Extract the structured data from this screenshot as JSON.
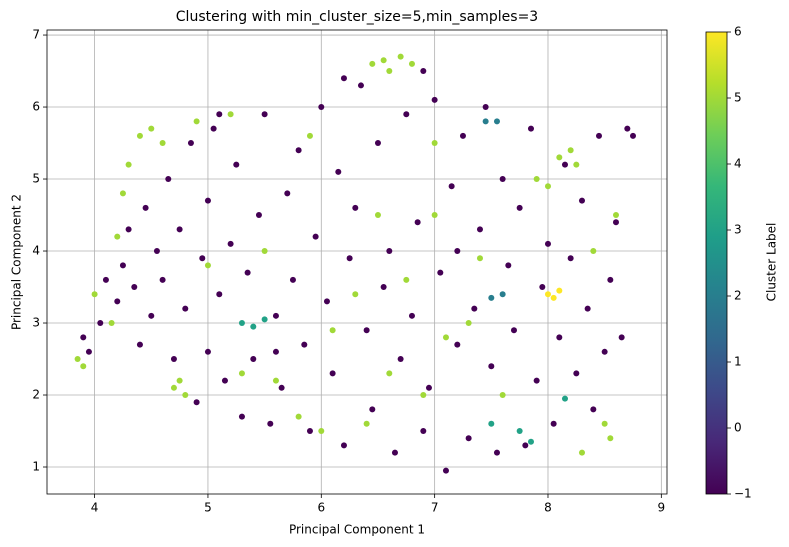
{
  "chart_data": {
    "type": "scatter",
    "title": "Clustering with min_cluster_size=5,min_samples=3",
    "x_label": "Principal Component 1",
    "y_label": "Principal Component 2",
    "colorbar_label": "Cluster Label",
    "colormap": "viridis",
    "clim": [
      -1,
      6
    ],
    "cticks": [
      {
        "value": -1,
        "label": "−1"
      },
      0,
      1,
      2,
      3,
      4,
      5,
      6
    ],
    "xlim": [
      3.58,
      9.05
    ],
    "ylim": [
      0.625,
      7.07
    ],
    "xticks": [
      4,
      5,
      6,
      7,
      8,
      9
    ],
    "yticks": [
      1,
      2,
      3,
      4,
      5,
      6,
      7
    ],
    "grid": true,
    "x": [
      3.9,
      3.95,
      4.05,
      4.1,
      4.2,
      4.25,
      4.3,
      4.35,
      4.4,
      4.5,
      4.45,
      4.55,
      4.6,
      4.65,
      4.7,
      4.75,
      4.8,
      4.85,
      4.9,
      4.95,
      5.0,
      5.0,
      5.05,
      5.1,
      5.15,
      5.2,
      5.25,
      5.3,
      5.35,
      5.4,
      5.45,
      5.5,
      5.55,
      5.6,
      5.65,
      5.7,
      5.75,
      5.8,
      5.85,
      5.9,
      5.95,
      6.0,
      6.05,
      6.1,
      6.15,
      6.2,
      6.25,
      6.3,
      6.35,
      6.4,
      6.45,
      6.5,
      6.55,
      6.6,
      6.65,
      6.7,
      6.75,
      6.8,
      6.85,
      6.9,
      6.95,
      7.0,
      7.05,
      7.1,
      7.15,
      7.2,
      7.25,
      7.3,
      7.35,
      7.4,
      7.45,
      7.5,
      7.55,
      7.6,
      7.65,
      7.7,
      7.75,
      7.8,
      7.85,
      7.9,
      7.95,
      8.0,
      8.05,
      8.1,
      8.15,
      8.2,
      8.25,
      8.3,
      8.35,
      8.4,
      8.45,
      8.5,
      8.55,
      8.6,
      8.65,
      8.7,
      8.75,
      5.1,
      6.2,
      6.9,
      7.2,
      5.6,
      3.85,
      3.9,
      4.0,
      4.15,
      4.2,
      4.25,
      4.3,
      4.4,
      4.5,
      4.6,
      4.7,
      4.75,
      4.8,
      4.9,
      5.0,
      5.2,
      5.3,
      5.5,
      5.8,
      5.9,
      6.1,
      6.3,
      6.4,
      6.45,
      6.55,
      6.6,
      6.7,
      6.8,
      6.5,
      6.6,
      6.75,
      6.9,
      7.0,
      7.1,
      7.3,
      7.4,
      7.6,
      7.9,
      8.0,
      8.1,
      8.2,
      8.25,
      8.4,
      8.5,
      8.55,
      8.6,
      8.3,
      7.0,
      5.6,
      6.0,
      5.3,
      5.4,
      5.5,
      7.5,
      7.75,
      7.85,
      8.15,
      7.45,
      7.55,
      7.5,
      7.6,
      8.0,
      8.05,
      8.1
    ],
    "values": [
      2.8,
      2.6,
      3.0,
      3.6,
      3.3,
      3.8,
      4.3,
      3.5,
      2.7,
      3.1,
      4.6,
      4.0,
      3.6,
      5.0,
      2.5,
      4.3,
      3.2,
      5.5,
      1.9,
      3.9,
      2.6,
      4.7,
      5.7,
      3.4,
      2.2,
      4.1,
      5.2,
      1.7,
      3.7,
      2.5,
      4.5,
      5.9,
      1.6,
      3.1,
      2.1,
      4.8,
      3.6,
      5.4,
      2.7,
      1.5,
      4.2,
      6.0,
      3.3,
      2.3,
      5.1,
      1.3,
      3.9,
      4.6,
      6.3,
      2.9,
      1.8,
      5.5,
      3.5,
      4.0,
      1.2,
      2.5,
      5.9,
      3.1,
      4.4,
      1.5,
      2.1,
      6.1,
      3.7,
      0.95,
      4.9,
      2.7,
      5.6,
      1.4,
      3.2,
      4.3,
      6.0,
      2.4,
      1.2,
      5.0,
      3.8,
      2.9,
      4.6,
      1.3,
      5.7,
      2.2,
      3.5,
      4.1,
      1.6,
      2.8,
      5.2,
      3.9,
      2.3,
      4.7,
      3.2,
      1.8,
      5.6,
      2.6,
      3.6,
      4.4,
      2.8,
      5.7,
      5.6,
      5.9,
      6.4,
      6.5,
      4.0,
      2.6,
      2.5,
      2.4,
      3.4,
      3.0,
      4.2,
      4.8,
      5.2,
      5.6,
      5.7,
      5.5,
      2.1,
      2.2,
      2.0,
      5.8,
      3.8,
      5.9,
      2.3,
      4.0,
      1.7,
      5.6,
      2.9,
      3.4,
      1.6,
      6.6,
      6.65,
      6.5,
      6.7,
      6.6,
      4.5,
      2.3,
      3.6,
      2.0,
      4.5,
      2.8,
      3.0,
      3.9,
      2.0,
      5.0,
      4.9,
      5.3,
      5.4,
      5.2,
      4.0,
      1.6,
      1.4,
      4.5,
      1.2,
      5.5,
      2.2,
      1.5,
      3.0,
      2.95,
      3.05,
      1.6,
      1.5,
      1.35,
      1.95,
      5.8,
      5.8,
      3.35,
      3.4,
      3.4,
      3.35,
      3.45
    ],
    "cluster": [
      -1,
      -1,
      -1,
      -1,
      -1,
      -1,
      -1,
      -1,
      -1,
      -1,
      -1,
      -1,
      -1,
      -1,
      -1,
      -1,
      -1,
      -1,
      -1,
      -1,
      -1,
      -1,
      -1,
      -1,
      -1,
      -1,
      -1,
      -1,
      -1,
      -1,
      -1,
      -1,
      -1,
      -1,
      -1,
      -1,
      -1,
      -1,
      -1,
      -1,
      -1,
      -1,
      -1,
      -1,
      -1,
      -1,
      -1,
      -1,
      -1,
      -1,
      -1,
      -1,
      -1,
      -1,
      -1,
      -1,
      -1,
      -1,
      -1,
      -1,
      -1,
      -1,
      -1,
      -1,
      -1,
      -1,
      -1,
      -1,
      -1,
      -1,
      -1,
      -1,
      -1,
      -1,
      -1,
      -1,
      -1,
      -1,
      -1,
      -1,
      -1,
      -1,
      -1,
      -1,
      -1,
      -1,
      -1,
      -1,
      -1,
      -1,
      -1,
      -1,
      -1,
      -1,
      -1,
      -1,
      -1,
      -1,
      -1,
      -1,
      -1,
      -1,
      5,
      5,
      5,
      5,
      5,
      5,
      5,
      5,
      5,
      5,
      5,
      5,
      5,
      5,
      5,
      5,
      5,
      5,
      5,
      5,
      5,
      5,
      5,
      5,
      5,
      5,
      5,
      5,
      5,
      5,
      5,
      5,
      5,
      5,
      5,
      5,
      5,
      5,
      5,
      5,
      5,
      5,
      5,
      5,
      5,
      5,
      5,
      5,
      5,
      5,
      3,
      3,
      3,
      3,
      3,
      3,
      3,
      2,
      2,
      2,
      2,
      6,
      6,
      6
    ]
  }
}
